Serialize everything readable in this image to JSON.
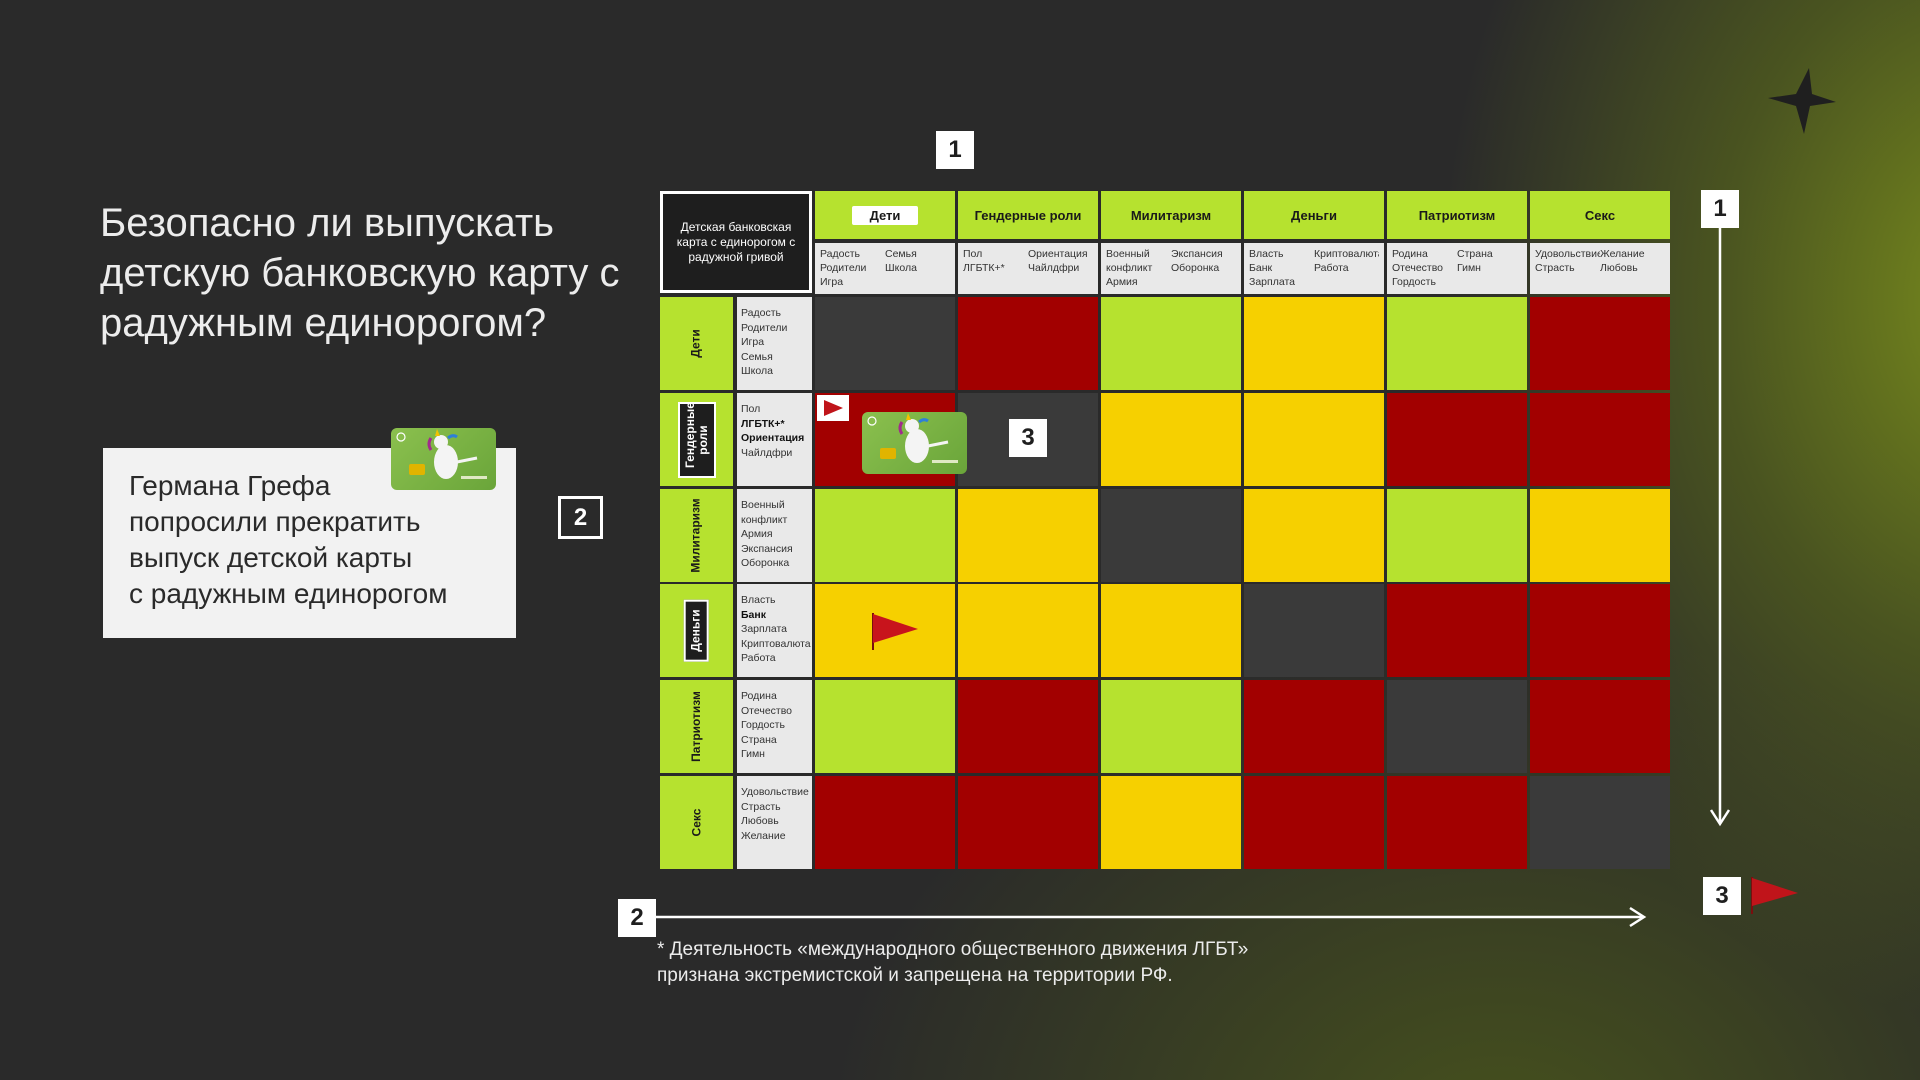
{
  "title": "Безопасно ли выпускать детскую банковскую карту с радужным единорогом?",
  "news": {
    "lines": [
      "Германа Грефа",
      "попросили прекратить",
      "выпуск детской карты",
      "с радужным единорогом"
    ]
  },
  "badges": {
    "one_top": "1",
    "one_right": "1",
    "two_left": "2",
    "two_bottom": "2",
    "three_grid": "3",
    "three_right": "3"
  },
  "matrix": {
    "corner": "Детская банковская карта с единорогом с радужной гривой",
    "columns": [
      {
        "label": "Дети",
        "col1": [
          "Радость",
          "Родители",
          "Игра"
        ],
        "col2": [
          "",
          "Семья",
          "Школа"
        ]
      },
      {
        "label": "Гендерные роли",
        "col1": [
          "Пол",
          "ЛГБТК+*"
        ],
        "col2": [
          "Ориентация",
          "Чайлдфри"
        ]
      },
      {
        "label": "Милитаризм",
        "col1": [
          "Военный",
          "конфликт",
          "Армия"
        ],
        "col2": [
          "Экспансия",
          "Оборонка"
        ]
      },
      {
        "label": "Деньги",
        "col1": [
          "Власть",
          "Банк",
          "Зарплата"
        ],
        "col2": [
          "Криптовалюта",
          "Работа"
        ]
      },
      {
        "label": "Патриотизм",
        "col1": [
          "Родина",
          "Отечество",
          "Гордость"
        ],
        "col2": [
          "Страна",
          "Гимн"
        ]
      },
      {
        "label": "Секс",
        "col1": [
          "Удовольствие",
          "Страсть"
        ],
        "col2": [
          "",
          "Желание",
          "Любовь"
        ]
      }
    ],
    "rows": [
      {
        "label": "Дети",
        "items": [
          "Радость",
          "Родители",
          "Игра",
          "Семья",
          "Школа"
        ],
        "cells": [
          "dark",
          "red",
          "green",
          "yellow",
          "green",
          "red"
        ]
      },
      {
        "label": "Гендерные роли",
        "items": [
          "Пол",
          "ЛГБТК+*",
          "Ориентация",
          "Чайлдфри"
        ],
        "cells": [
          "red",
          "dark",
          "yellow",
          "yellow",
          "red",
          "red"
        ]
      },
      {
        "label": "Милитаризм",
        "items": [
          "Военный",
          "конфликт",
          "Армия",
          "Экспансия",
          "Оборонка"
        ],
        "cells": [
          "green",
          "yellow",
          "dark",
          "yellow",
          "green",
          "yellow"
        ]
      },
      {
        "label": "Деньги",
        "items": [
          "Власть",
          "Банк",
          "Зарплата",
          "Криптовалюта",
          "Работа"
        ],
        "cells": [
          "yellow",
          "yellow",
          "yellow",
          "dark",
          "red",
          "red"
        ]
      },
      {
        "label": "Патриотизм",
        "items": [
          "Родина",
          "Отечество",
          "Гордость",
          "Страна",
          "Гимн"
        ],
        "cells": [
          "green",
          "red",
          "green",
          "red",
          "dark",
          "red"
        ]
      },
      {
        "label": "Секс",
        "items": [
          "Удовольствие",
          "Страсть",
          "Любовь",
          "Желание"
        ],
        "cells": [
          "red",
          "red",
          "yellow",
          "red",
          "red",
          "dark"
        ]
      }
    ],
    "colors": {
      "green": "#b6e22f",
      "red": "#a20000",
      "yellow": "#f6d000",
      "dark": "#3a3a3a"
    }
  },
  "footnote": {
    "line1": "* Деятельность «международного общественного движения ЛГБТ»",
    "line2": "признана экстремистской и запрещена на территории РФ."
  }
}
